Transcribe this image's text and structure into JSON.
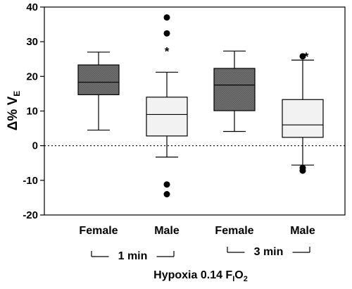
{
  "chart_data": {
    "type": "box",
    "ylabel": {
      "main": "Δ% V",
      "sub": "E"
    },
    "xlabel": {
      "main": "Hypoxia 0.14 F",
      "sub1": "I",
      "mid": "O",
      "sub2": "2"
    },
    "ylim": [
      -20,
      40
    ],
    "yticks": [
      -20,
      -10,
      0,
      10,
      20,
      30,
      40
    ],
    "reference_line": 0,
    "groups": [
      {
        "label": "1 min",
        "categories": [
          0,
          1
        ]
      },
      {
        "label": "3 min",
        "categories": [
          2,
          3
        ]
      }
    ],
    "boxes": [
      {
        "category": "Female",
        "whisker_low": 4.5,
        "q1": 14.7,
        "median": 18.3,
        "q3": 23.3,
        "whisker_high": 27.0,
        "outliers": [],
        "significance": "",
        "fill": "#6b6b6b"
      },
      {
        "category": "Male",
        "whisker_low": -3.3,
        "q1": 2.8,
        "median": 9.0,
        "q3": 14.0,
        "whisker_high": 21.2,
        "outliers": [
          37.0,
          32.4,
          -11.2,
          -14.0
        ],
        "significance": "*",
        "fill": "#f2f2f2"
      },
      {
        "category": "Female",
        "whisker_low": 4.1,
        "q1": 10.1,
        "median": 17.5,
        "q3": 22.3,
        "whisker_high": 27.3,
        "outliers": [],
        "significance": "",
        "fill": "#6b6b6b"
      },
      {
        "category": "Male",
        "whisker_low": -5.6,
        "q1": 2.4,
        "median": 6.0,
        "q3": 13.3,
        "whisker_high": 24.7,
        "outliers": [
          25.8,
          -6.4,
          -7.2
        ],
        "significance": "*",
        "fill": "#f2f2f2"
      }
    ]
  }
}
